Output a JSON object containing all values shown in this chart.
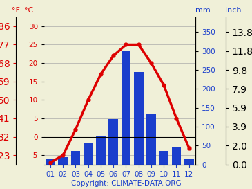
{
  "months": [
    1,
    2,
    3,
    4,
    5,
    6,
    7,
    8,
    9,
    10,
    11,
    12
  ],
  "month_labels": [
    "01",
    "02",
    "03",
    "04",
    "05",
    "06",
    "07",
    "08",
    "09",
    "10",
    "11",
    "12"
  ],
  "temp_c": [
    -7,
    -5,
    2,
    10,
    17,
    22,
    25,
    25,
    20,
    14,
    5,
    -3
  ],
  "precip_mm": [
    15,
    20,
    35,
    55,
    75,
    120,
    300,
    245,
    135,
    35,
    45,
    15
  ],
  "temp_color": "#dd0000",
  "precip_color": "#1a3ecc",
  "bg_color": "#f0f0d8",
  "left_yticks_c": [
    -5,
    0,
    5,
    10,
    15,
    20,
    25,
    30
  ],
  "left_yticks_f": [
    23,
    32,
    41,
    50,
    59,
    68,
    77,
    86
  ],
  "right_yticks_mm": [
    0,
    50,
    100,
    150,
    200,
    250,
    300,
    350
  ],
  "right_yticks_inch": [
    "0.0",
    "2.0",
    "3.9",
    "5.9",
    "7.9",
    "9.8",
    "11.8",
    "13.8"
  ],
  "ylim_c": [
    -7.5,
    32.5
  ],
  "ylim_mm": [
    0,
    390
  ],
  "xlabel_color": "#1a3ecc",
  "label_c": "°C",
  "label_f": "°F",
  "label_mm": "mm",
  "label_inch": "inch",
  "copyright_text": "Copyright: CLIMATE-DATA.ORG",
  "copyright_color": "#1a3ecc",
  "grid_color": "#aaaaaa",
  "tick_fontsize": 7.5,
  "label_fontsize": 8.0
}
